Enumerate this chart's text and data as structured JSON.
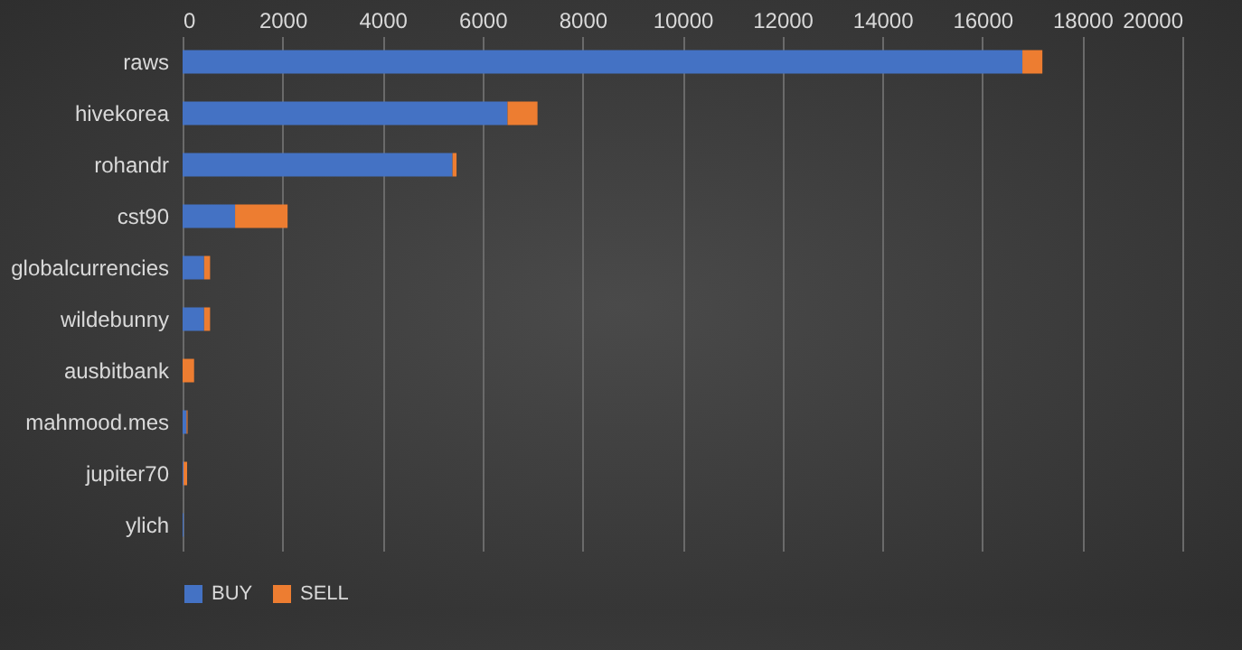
{
  "chart_data": {
    "type": "bar",
    "orientation": "horizontal",
    "stacked": true,
    "categories": [
      "raws",
      "hivekorea",
      "rohandr",
      "cst90",
      "globalcurrencies",
      "wildebunny",
      "ausbitbank",
      "mahmood.mes",
      "jupiter70",
      "ylich"
    ],
    "series": [
      {
        "name": "BUY",
        "color": "#4472c4",
        "values": [
          16800,
          6500,
          5400,
          1050,
          430,
          430,
          0,
          80,
          20,
          20
        ]
      },
      {
        "name": "SELL",
        "color": "#ed7d31",
        "values": [
          400,
          600,
          80,
          1050,
          120,
          120,
          230,
          20,
          70,
          0
        ]
      }
    ],
    "xlim": [
      0,
      20000
    ],
    "xticks": [
      0,
      2000,
      4000,
      6000,
      8000,
      10000,
      12000,
      14000,
      16000,
      18000,
      20000
    ],
    "grid": "x",
    "legend": "bottom"
  }
}
